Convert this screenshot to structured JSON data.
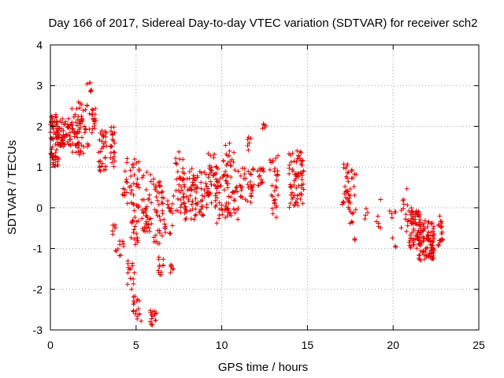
{
  "chart_data": {
    "type": "scatter",
    "title": "Day 166 of 2017, Sidereal Day-to-day VTEC variation (SDTVAR) for receiver sch2",
    "xlabel": "GPS time / hours",
    "ylabel": "SDTVAR / TECUs",
    "xlim": [
      0,
      25
    ],
    "ylim": [
      -3,
      4
    ],
    "xticks": [
      0,
      5,
      10,
      15,
      20,
      25
    ],
    "yticks": [
      -3,
      -2,
      -1,
      0,
      1,
      2,
      3,
      4
    ],
    "xtick_labels": [
      "0",
      "5",
      "10",
      "15",
      "20",
      "25"
    ],
    "ytick_labels": [
      "-3",
      "-2",
      "-1",
      "0",
      "1",
      "2",
      "3",
      "4"
    ],
    "grid": true,
    "marker": "+",
    "color": "#e00000",
    "clusters": [
      {
        "x": [
          0.0,
          0.5
        ],
        "y": [
          1.0,
          2.3
        ],
        "n": 70
      },
      {
        "x": [
          0.5,
          1.2
        ],
        "y": [
          1.5,
          2.2
        ],
        "n": 50
      },
      {
        "x": [
          1.2,
          2.3
        ],
        "y": [
          1.3,
          2.6
        ],
        "n": 70
      },
      {
        "x": [
          2.1,
          2.4
        ],
        "y": [
          2.8,
          3.2
        ],
        "n": 6
      },
      {
        "x": [
          2.4,
          2.7
        ],
        "y": [
          1.8,
          2.5
        ],
        "n": 16
      },
      {
        "x": [
          2.8,
          3.3
        ],
        "y": [
          0.9,
          1.9
        ],
        "n": 32
      },
      {
        "x": [
          3.5,
          3.8
        ],
        "y": [
          0.9,
          2.0
        ],
        "n": 22
      },
      {
        "x": [
          3.6,
          3.9
        ],
        "y": [
          -0.7,
          -0.4
        ],
        "n": 6
      },
      {
        "x": [
          3.8,
          4.3
        ],
        "y": [
          -1.2,
          -0.8
        ],
        "n": 10
      },
      {
        "x": [
          4.2,
          4.5
        ],
        "y": [
          0.1,
          1.3
        ],
        "n": 14
      },
      {
        "x": [
          4.5,
          4.9
        ],
        "y": [
          -2.0,
          -1.3
        ],
        "n": 14
      },
      {
        "x": [
          4.6,
          5.2
        ],
        "y": [
          0.3,
          1.2
        ],
        "n": 22
      },
      {
        "x": [
          4.8,
          5.3
        ],
        "y": [
          -2.8,
          -2.1
        ],
        "n": 18
      },
      {
        "x": [
          4.7,
          5.2
        ],
        "y": [
          -1.0,
          0.2
        ],
        "n": 26
      },
      {
        "x": [
          5.3,
          5.9
        ],
        "y": [
          -0.6,
          1.1
        ],
        "n": 40
      },
      {
        "x": [
          5.8,
          6.2
        ],
        "y": [
          -2.9,
          -2.5
        ],
        "n": 16
      },
      {
        "x": [
          6.0,
          6.6
        ],
        "y": [
          -0.9,
          0.8
        ],
        "n": 38
      },
      {
        "x": [
          6.3,
          6.6
        ],
        "y": [
          -1.7,
          -1.2
        ],
        "n": 12
      },
      {
        "x": [
          7.0,
          7.3
        ],
        "y": [
          -1.6,
          -1.4
        ],
        "n": 6
      },
      {
        "x": [
          6.6,
          7.2
        ],
        "y": [
          -0.7,
          0.3
        ],
        "n": 20
      },
      {
        "x": [
          7.3,
          7.8
        ],
        "y": [
          -0.2,
          1.4
        ],
        "n": 34
      },
      {
        "x": [
          7.8,
          8.8
        ],
        "y": [
          -0.3,
          1.0
        ],
        "n": 60
      },
      {
        "x": [
          8.8,
          9.3
        ],
        "y": [
          -0.2,
          0.9
        ],
        "n": 24
      },
      {
        "x": [
          9.2,
          9.8
        ],
        "y": [
          0.0,
          1.4
        ],
        "n": 34
      },
      {
        "x": [
          9.6,
          10.4
        ],
        "y": [
          -0.4,
          1.2
        ],
        "n": 40
      },
      {
        "x": [
          10.2,
          11.0
        ],
        "y": [
          -0.3,
          1.6
        ],
        "n": 44
      },
      {
        "x": [
          11.0,
          11.9
        ],
        "y": [
          0.1,
          1.0
        ],
        "n": 34
      },
      {
        "x": [
          11.4,
          11.8
        ],
        "y": [
          1.4,
          1.8
        ],
        "n": 6
      },
      {
        "x": [
          12.0,
          12.5
        ],
        "y": [
          0.5,
          1.0
        ],
        "n": 16
      },
      {
        "x": [
          12.3,
          12.6
        ],
        "y": [
          1.9,
          2.1
        ],
        "n": 5
      },
      {
        "x": [
          12.8,
          13.3
        ],
        "y": [
          -0.4,
          1.3
        ],
        "n": 30
      },
      {
        "x": [
          13.9,
          14.8
        ],
        "y": [
          0.0,
          1.4
        ],
        "n": 70
      },
      {
        "x": [
          17.0,
          17.6
        ],
        "y": [
          0.0,
          1.1
        ],
        "n": 30
      },
      {
        "x": [
          17.4,
          17.9
        ],
        "y": [
          -0.4,
          0.9
        ],
        "n": 16
      },
      {
        "x": [
          17.6,
          17.8
        ],
        "y": [
          -0.8,
          -0.7
        ],
        "n": 3
      },
      {
        "x": [
          18.3,
          18.6
        ],
        "y": [
          -0.3,
          0.0
        ],
        "n": 4
      },
      {
        "x": [
          19.0,
          19.3
        ],
        "y": [
          -0.5,
          0.6
        ],
        "n": 6
      },
      {
        "x": [
          19.8,
          20.2
        ],
        "y": [
          -1.0,
          0.0
        ],
        "n": 8
      },
      {
        "x": [
          20.4,
          20.9
        ],
        "y": [
          -0.6,
          0.5
        ],
        "n": 14
      },
      {
        "x": [
          20.9,
          21.6
        ],
        "y": [
          -1.0,
          0.0
        ],
        "n": 60
      },
      {
        "x": [
          21.5,
          22.4
        ],
        "y": [
          -1.3,
          -0.3
        ],
        "n": 100
      },
      {
        "x": [
          22.6,
          22.9
        ],
        "y": [
          -1.0,
          -0.2
        ],
        "n": 20
      }
    ]
  }
}
